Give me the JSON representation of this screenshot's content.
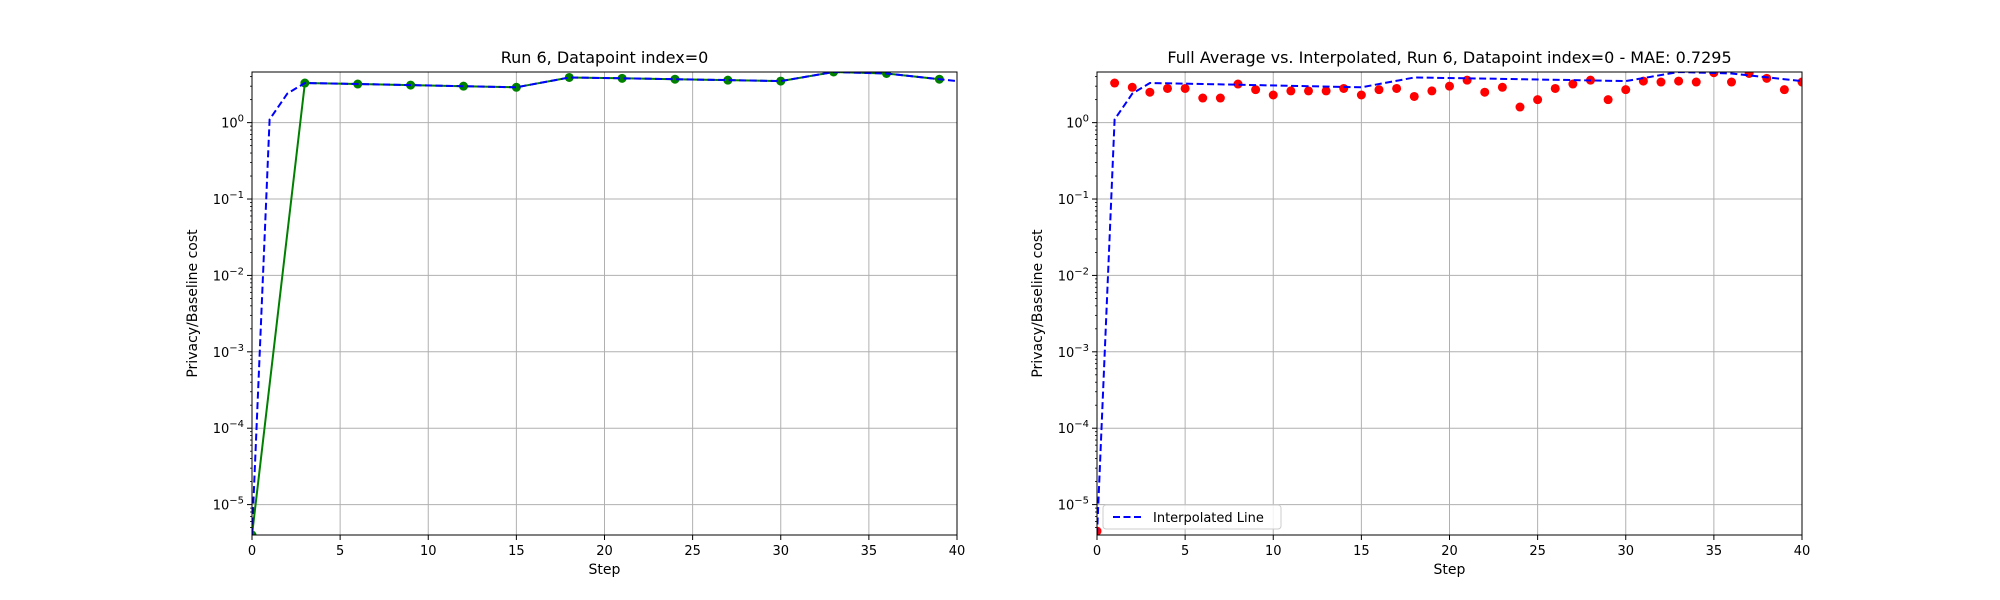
{
  "chart_data": [
    {
      "type": "line",
      "title": "Run 6, Datapoint index=0",
      "xlabel": "Step",
      "ylabel": "Privacy/Baseline cost",
      "xlim": [
        0,
        40
      ],
      "ylim": [
        4e-06,
        4.6
      ],
      "yscale": "log",
      "grid": true,
      "x_ticks": [
        0,
        5,
        10,
        15,
        20,
        25,
        30,
        35,
        40
      ],
      "y_ticks": [
        {
          "value": 1e-05,
          "base": "10",
          "exp": "−5"
        },
        {
          "value": 0.0001,
          "base": "10",
          "exp": "−4"
        },
        {
          "value": 0.001,
          "base": "10",
          "exp": "−3"
        },
        {
          "value": 0.01,
          "base": "10",
          "exp": "−2"
        },
        {
          "value": 0.1,
          "base": "10",
          "exp": "−1"
        },
        {
          "value": 1,
          "base": "10",
          "exp": "0"
        }
      ],
      "series": [
        {
          "style": "solid-line-with-markers",
          "color": "#008000",
          "marker_color": "#008000",
          "x": [
            0,
            3,
            6,
            9,
            12,
            15,
            18,
            21,
            24,
            27,
            30,
            33,
            36,
            39
          ],
          "y": [
            4e-06,
            3.3,
            3.2,
            3.1,
            3.0,
            2.9,
            3.9,
            3.8,
            3.7,
            3.6,
            3.5,
            4.6,
            4.4,
            3.7
          ]
        },
        {
          "style": "dashed",
          "color": "#0000ff",
          "x": [
            0,
            1,
            2,
            3,
            6,
            9,
            12,
            15,
            18,
            21,
            24,
            27,
            30,
            33,
            36,
            39,
            40
          ],
          "y": [
            4e-06,
            1.1,
            2.4,
            3.3,
            3.2,
            3.1,
            3.0,
            2.9,
            3.9,
            3.8,
            3.7,
            3.6,
            3.5,
            4.6,
            4.4,
            3.7,
            3.5
          ]
        }
      ]
    },
    {
      "type": "scatter",
      "title": "Full Average vs. Interpolated, Run 6, Datapoint index=0 - MAE: 0.7295",
      "xlabel": "Step",
      "ylabel": "Privacy/Baseline cost",
      "xlim": [
        0,
        40
      ],
      "ylim": [
        4e-06,
        4.6
      ],
      "yscale": "log",
      "grid": true,
      "legend_position": "lower-left",
      "x_ticks": [
        0,
        5,
        10,
        15,
        20,
        25,
        30,
        35,
        40
      ],
      "y_ticks": [
        {
          "value": 1e-05,
          "base": "10",
          "exp": "−5"
        },
        {
          "value": 0.0001,
          "base": "10",
          "exp": "−4"
        },
        {
          "value": 0.001,
          "base": "10",
          "exp": "−3"
        },
        {
          "value": 0.01,
          "base": "10",
          "exp": "−2"
        },
        {
          "value": 0.1,
          "base": "10",
          "exp": "−1"
        },
        {
          "value": 1,
          "base": "10",
          "exp": "0"
        }
      ],
      "series": [
        {
          "style": "markers",
          "color": "#ff0000",
          "x": [
            0,
            1,
            2,
            3,
            4,
            5,
            6,
            7,
            8,
            9,
            10,
            11,
            12,
            13,
            14,
            15,
            16,
            17,
            18,
            19,
            20,
            21,
            22,
            23,
            24,
            25,
            26,
            27,
            28,
            29,
            30,
            31,
            32,
            33,
            34,
            35,
            36,
            37,
            38,
            39,
            40
          ],
          "y": [
            4.5e-06,
            3.3,
            2.9,
            2.5,
            2.8,
            2.8,
            2.1,
            2.1,
            3.2,
            2.7,
            2.3,
            2.6,
            2.6,
            2.6,
            2.8,
            2.3,
            2.7,
            2.8,
            2.2,
            2.6,
            3.0,
            3.6,
            2.5,
            2.9,
            1.6,
            2.0,
            2.8,
            3.2,
            3.6,
            2.0,
            2.7,
            3.5,
            3.4,
            3.5,
            3.4,
            4.5,
            3.4,
            4.4,
            3.8,
            2.7,
            3.4
          ]
        },
        {
          "name": "Interpolated Line",
          "style": "dashed",
          "color": "#0000ff",
          "x": [
            0,
            1,
            2,
            3,
            6,
            9,
            12,
            15,
            18,
            21,
            24,
            27,
            30,
            33,
            36,
            39,
            40
          ],
          "y": [
            4e-06,
            1.1,
            2.4,
            3.3,
            3.2,
            3.1,
            3.0,
            2.9,
            3.9,
            3.8,
            3.7,
            3.6,
            3.5,
            4.6,
            4.4,
            3.7,
            3.5
          ]
        }
      ]
    }
  ]
}
